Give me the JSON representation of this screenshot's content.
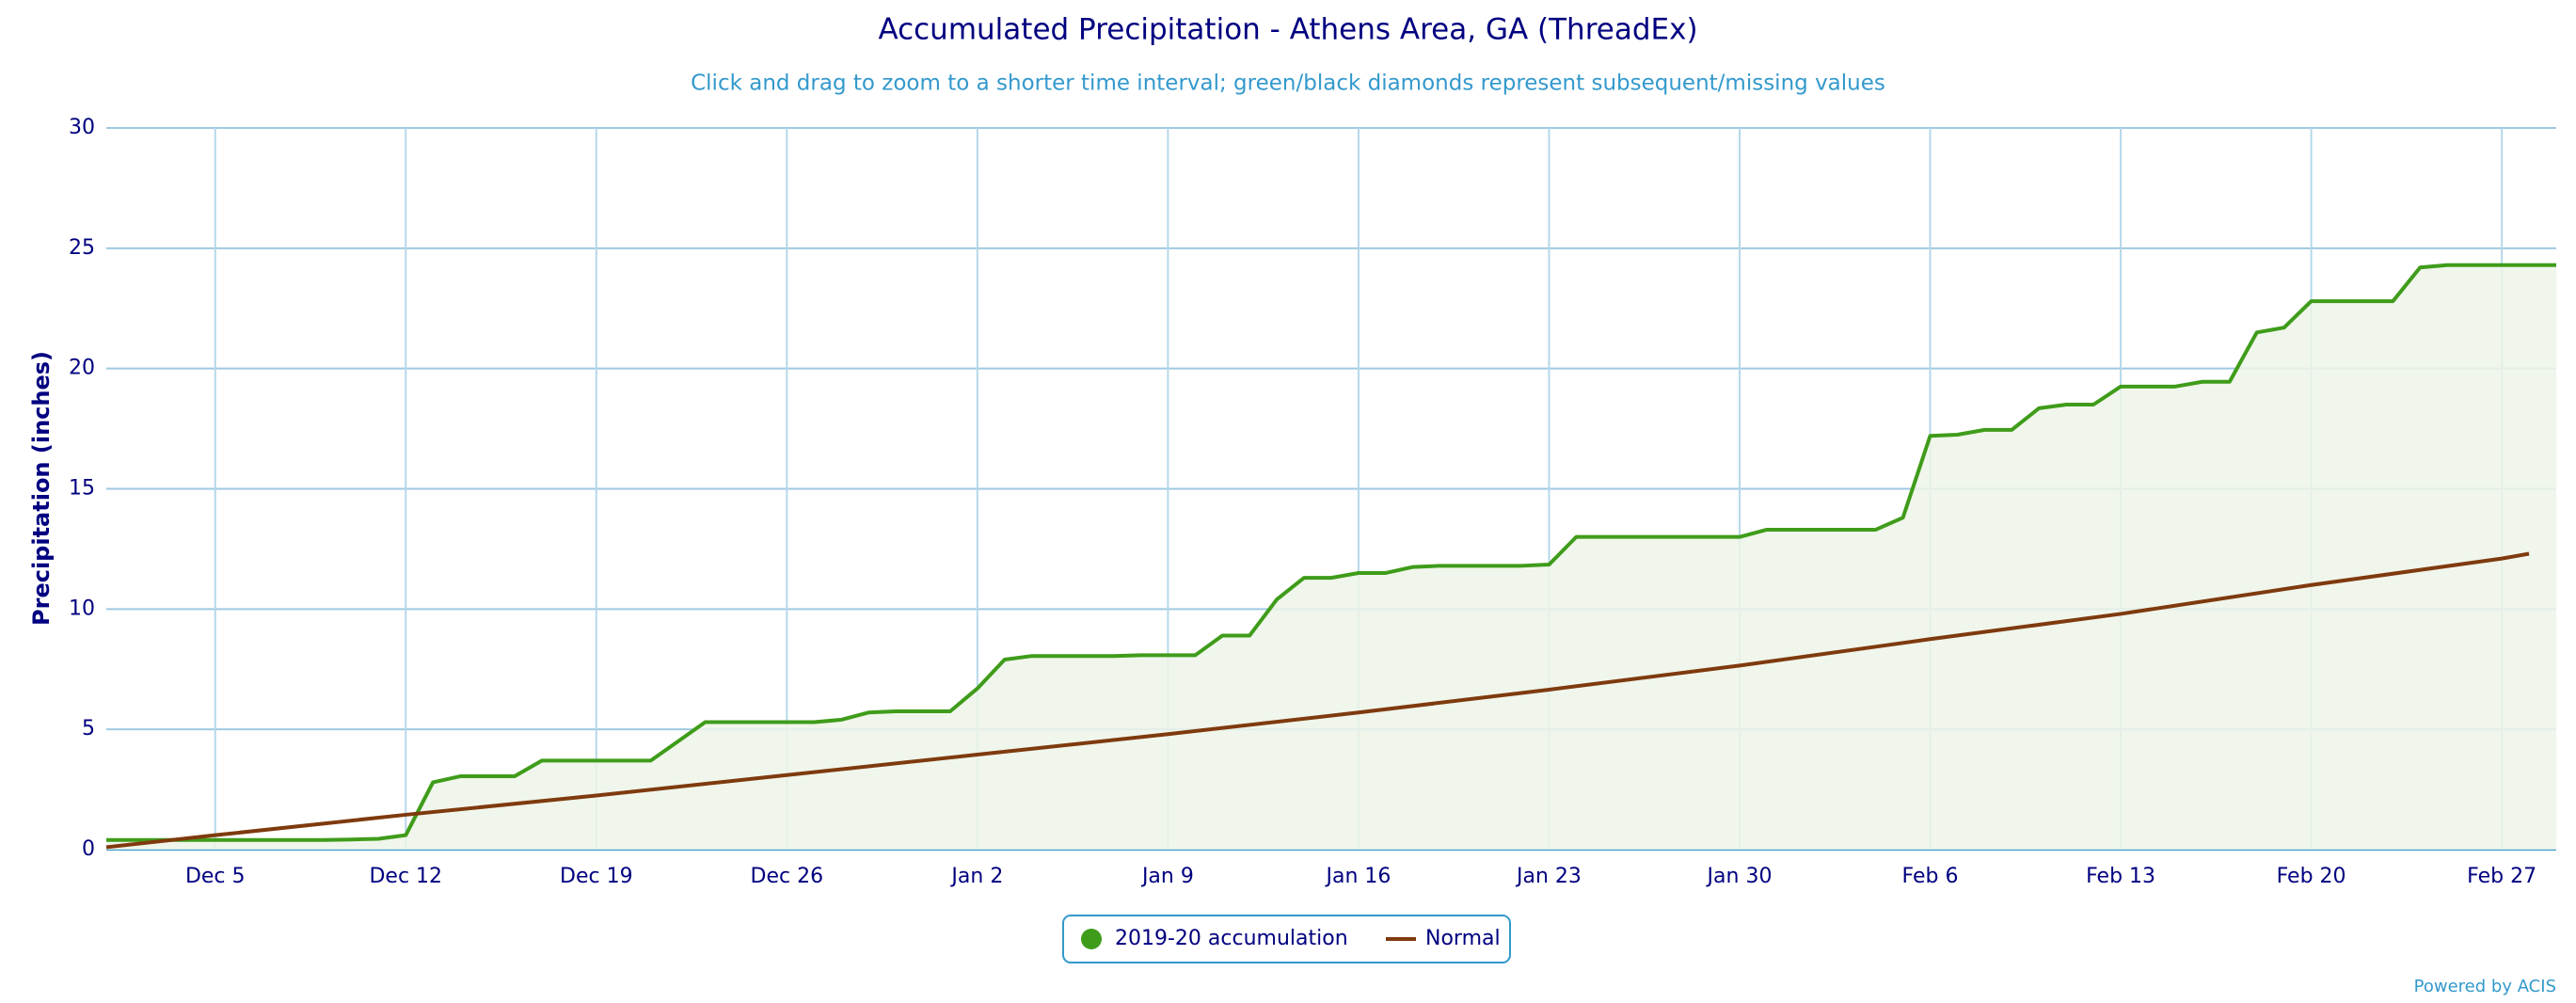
{
  "chart_data": {
    "type": "line",
    "title": "Accumulated Precipitation - Athens Area, GA (ThreadEx)",
    "subtitle": "Click and drag to zoom to a shorter time interval; green/black diamonds represent subsequent/missing values",
    "y_label": "Precipitation (inches)",
    "credit": "Powered by ACIS",
    "xlim": [
      0,
      90
    ],
    "xticks": [
      {
        "value": 4,
        "label": "Dec 5"
      },
      {
        "value": 11,
        "label": "Dec 12"
      },
      {
        "value": 18,
        "label": "Dec 19"
      },
      {
        "value": 25,
        "label": "Dec 26"
      },
      {
        "value": 32,
        "label": "Jan 2"
      },
      {
        "value": 39,
        "label": "Jan 9"
      },
      {
        "value": 46,
        "label": "Jan 16"
      },
      {
        "value": 53,
        "label": "Jan 23"
      },
      {
        "value": 60,
        "label": "Jan 30"
      },
      {
        "value": 67,
        "label": "Feb 6"
      },
      {
        "value": 74,
        "label": "Feb 13"
      },
      {
        "value": 81,
        "label": "Feb 20"
      },
      {
        "value": 88,
        "label": "Feb 27"
      }
    ],
    "ylim": [
      0,
      30
    ],
    "yticks": [
      0,
      5,
      10,
      15,
      20,
      25,
      30
    ],
    "grid": true,
    "legend": "bottom",
    "series": [
      {
        "name": "2019-20 accumulation",
        "color": "#3f9c1a",
        "fill": "#edf5e8",
        "x": [
          0,
          1,
          2,
          3,
          4,
          5,
          6,
          7,
          8,
          9,
          10,
          11,
          12,
          13,
          14,
          15,
          16,
          17,
          18,
          19,
          20,
          21,
          22,
          23,
          24,
          25,
          26,
          27,
          28,
          29,
          30,
          31,
          32,
          33,
          34,
          35,
          36,
          37,
          38,
          39,
          40,
          41,
          42,
          43,
          44,
          45,
          46,
          47,
          48,
          49,
          50,
          51,
          52,
          53,
          54,
          55,
          56,
          57,
          58,
          59,
          60,
          61,
          62,
          63,
          64,
          65,
          66,
          67,
          68,
          69,
          70,
          71,
          72,
          73,
          74,
          75,
          76,
          77,
          78,
          79,
          80,
          81,
          82,
          83,
          84,
          85,
          86,
          87,
          88,
          89,
          90
        ],
        "values": [
          0.4,
          0.4,
          0.4,
          0.4,
          0.4,
          0.4,
          0.4,
          0.4,
          0.4,
          0.42,
          0.45,
          0.6,
          2.8,
          3.05,
          3.05,
          3.05,
          3.7,
          3.7,
          3.7,
          3.7,
          3.7,
          4.5,
          5.3,
          5.3,
          5.3,
          5.3,
          5.3,
          5.4,
          5.7,
          5.75,
          5.75,
          5.75,
          6.7,
          7.9,
          8.05,
          8.05,
          8.05,
          8.05,
          8.08,
          8.08,
          8.08,
          8.9,
          8.9,
          10.4,
          11.3,
          11.3,
          11.5,
          11.5,
          11.75,
          11.8,
          11.8,
          11.8,
          11.8,
          11.85,
          13.0,
          13.0,
          13.0,
          13.0,
          13.0,
          13.0,
          13.0,
          13.3,
          13.3,
          13.3,
          13.3,
          13.3,
          13.8,
          17.2,
          17.25,
          17.45,
          17.45,
          18.35,
          18.5,
          18.5,
          19.25,
          19.25,
          19.25,
          19.45,
          19.45,
          21.5,
          21.7,
          22.8,
          22.8,
          22.8,
          22.8,
          24.2,
          24.3,
          24.3,
          24.3,
          24.3,
          24.3
        ]
      },
      {
        "name": "Normal",
        "color": "#7f3a0e",
        "x": [
          0,
          4,
          11,
          18,
          25,
          32,
          39,
          46,
          53,
          60,
          67,
          74,
          81,
          88,
          89
        ],
        "values": [
          0.1,
          0.6,
          1.45,
          2.25,
          3.1,
          3.95,
          4.8,
          5.7,
          6.65,
          7.65,
          8.75,
          9.8,
          11.0,
          12.1,
          12.3
        ]
      }
    ]
  }
}
